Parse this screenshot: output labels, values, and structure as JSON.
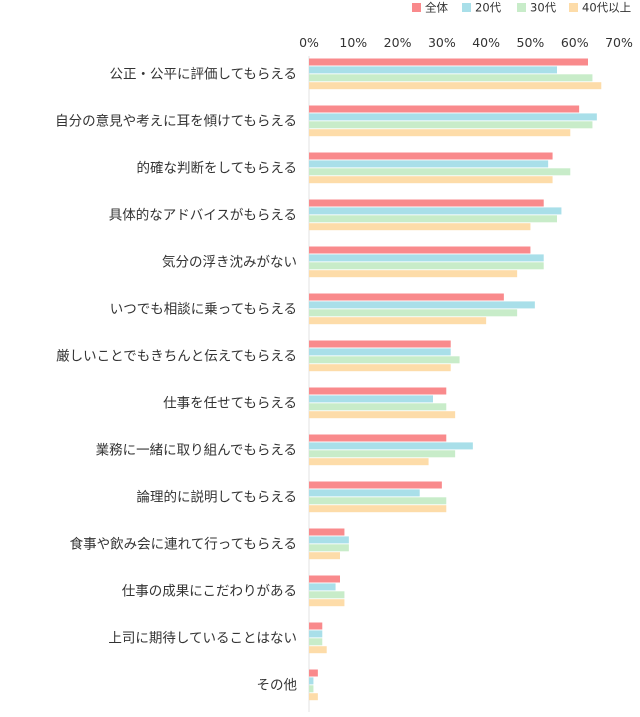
{
  "chart_data": {
    "type": "bar",
    "orientation": "horizontal",
    "xlim": [
      0,
      70
    ],
    "tick_labels": [
      "0%",
      "10%",
      "20%",
      "30%",
      "40%",
      "50%",
      "60%",
      "70%"
    ],
    "tick_values": [
      0,
      10,
      20,
      30,
      40,
      50,
      60,
      70
    ],
    "grid": false,
    "legend_position": "top-right",
    "categories": [
      "公正・公平に評価してもらえる",
      "自分の意見や考えに耳を傾けてもらえる",
      "的確な判断をしてもらえる",
      "具体的なアドバイスがもらえる",
      "気分の浮き沈みがない",
      "いつでも相談に乗ってもらえる",
      "厳しいことでもきちんと伝えてもらえる",
      "仕事を任せてもらえる",
      "業務に一緒に取り組んでもらえる",
      "論理的に説明してもらえる",
      "食事や飲み会に連れて行ってもらえる",
      "仕事の成果にこだわりがある",
      "上司に期待していることはない",
      "その他"
    ],
    "series": [
      {
        "name": "全体",
        "color": "#f98a8c",
        "values": [
          63,
          61,
          55,
          53,
          50,
          44,
          32,
          31,
          31,
          30,
          8,
          7,
          3,
          2
        ]
      },
      {
        "name": "20代",
        "color": "#a9dfe9",
        "values": [
          56,
          65,
          54,
          57,
          53,
          51,
          32,
          28,
          37,
          25,
          9,
          6,
          3,
          1
        ]
      },
      {
        "name": "30代",
        "color": "#c8ecc9",
        "values": [
          64,
          64,
          59,
          56,
          53,
          47,
          34,
          31,
          33,
          31,
          9,
          8,
          3,
          1
        ]
      },
      {
        "name": "40代以上",
        "color": "#fddca9",
        "values": [
          66,
          59,
          55,
          50,
          47,
          40,
          32,
          33,
          27,
          31,
          7,
          8,
          4,
          2
        ]
      }
    ]
  }
}
